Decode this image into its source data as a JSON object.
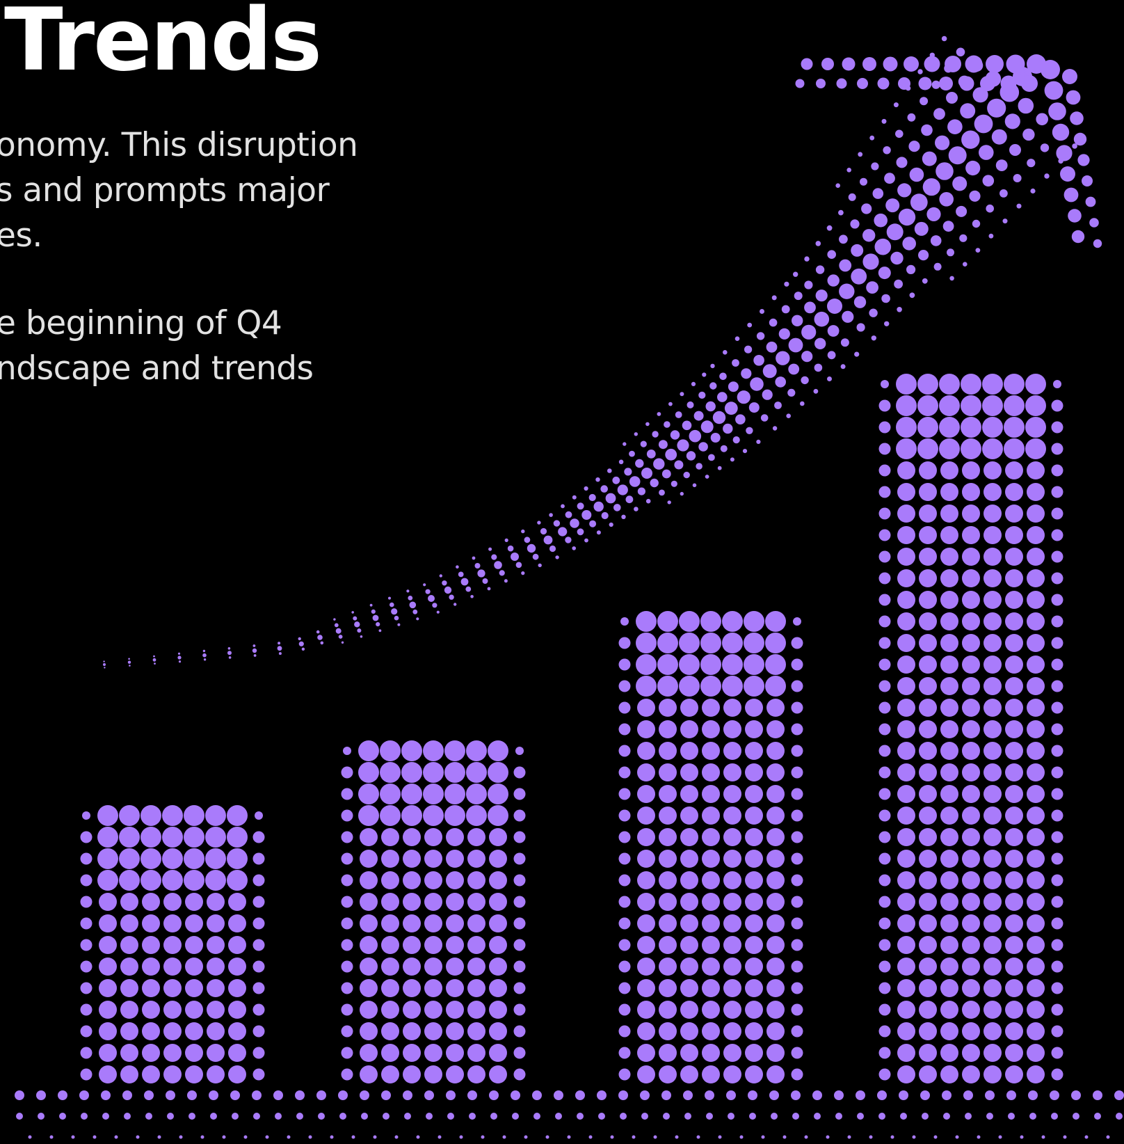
{
  "heading": "Trends",
  "paragraphs": [
    {
      "lines": [
        "onomy. This disruption",
        "s and prompts major",
        "es."
      ]
    },
    {
      "lines": [
        "e beginning of Q4",
        "ndscape and trends"
      ]
    }
  ],
  "graphic": {
    "bars": [
      {
        "name": "bar-1",
        "relative_height": 0.37
      },
      {
        "name": "bar-2",
        "relative_height": 0.48
      },
      {
        "name": "bar-3",
        "relative_height": 0.65
      },
      {
        "name": "bar-4",
        "relative_height": 1.0
      }
    ],
    "arrow": "rising-trend-arrow"
  },
  "colors": {
    "background": "#000000",
    "heading": "#ffffff",
    "body_text": "#e2e2e2",
    "dots": "#a97bfb"
  }
}
